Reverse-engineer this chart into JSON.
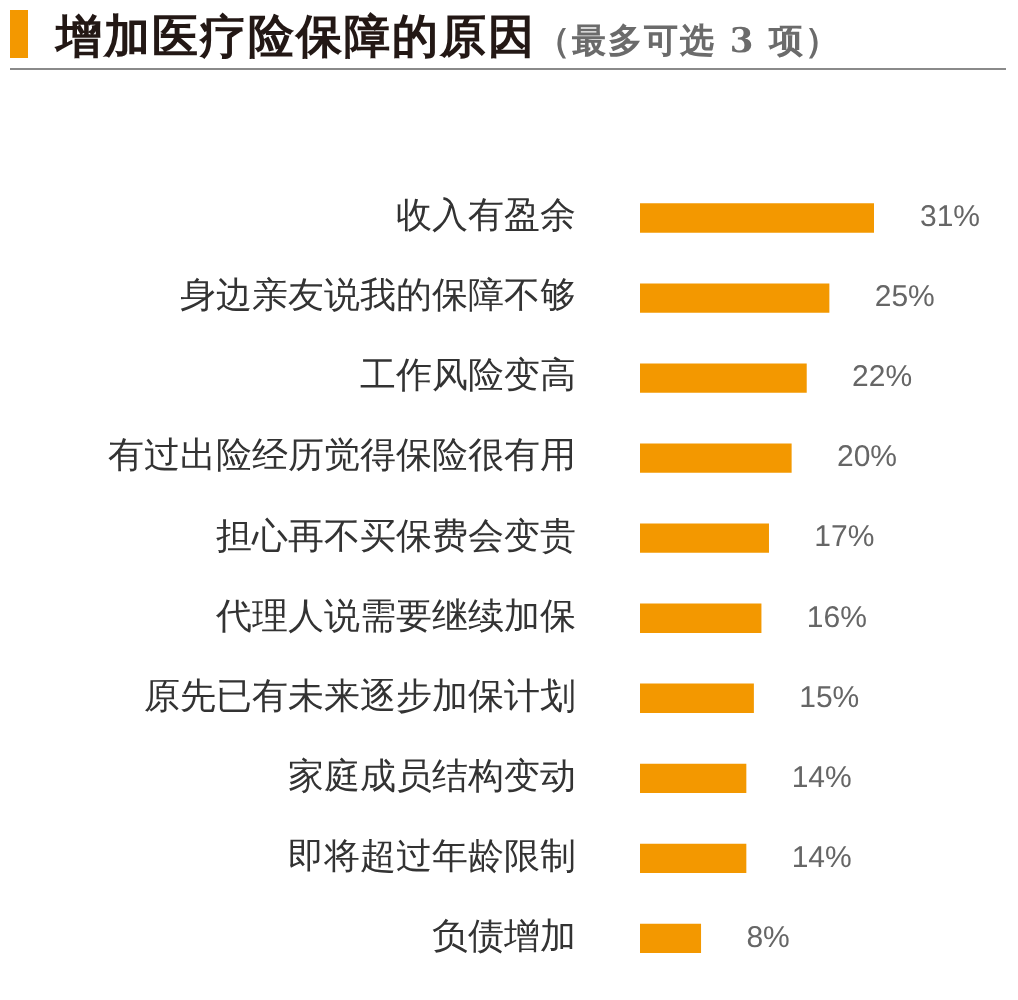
{
  "chart_data": {
    "type": "bar",
    "orientation": "horizontal",
    "title": "增加医疗险保障的原因",
    "subtitle": "（最多可选 3 项）",
    "categories": [
      "收入有盈余",
      "身边亲友说我的保障不够",
      "工作风险变高",
      "有过出险经历觉得保险很有用",
      "担心再不买保费会变贵",
      "代理人说需要继续加保",
      "原先已有未来逐步加保计划",
      "家庭成员结构变动",
      "即将超过年龄限制",
      "负债增加"
    ],
    "values": [
      31,
      25,
      22,
      20,
      17,
      16,
      15,
      14,
      14,
      8
    ],
    "value_labels": [
      "31%",
      "25%",
      "22%",
      "20%",
      "17%",
      "16%",
      "15%",
      "14%",
      "14%",
      "8%"
    ],
    "color": "#f39800"
  }
}
